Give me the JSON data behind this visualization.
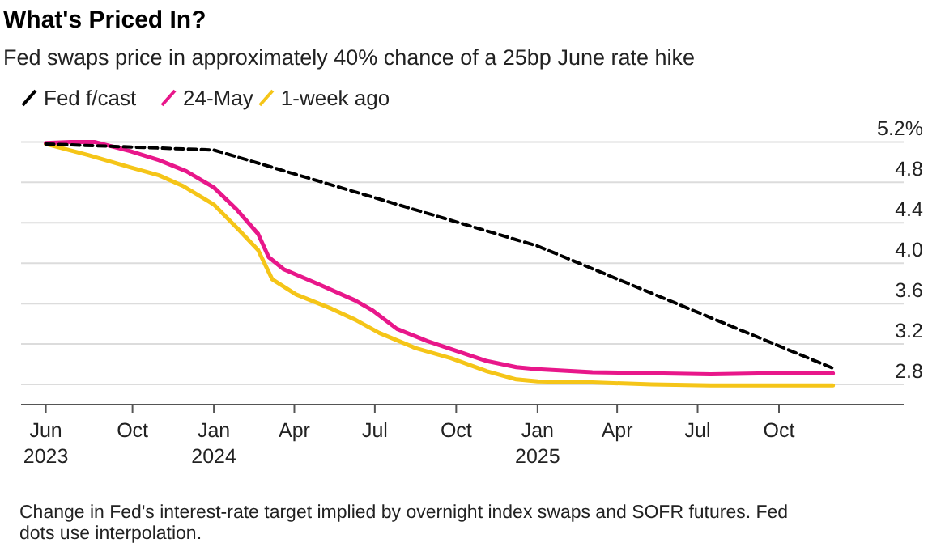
{
  "chart_data": {
    "type": "line",
    "title": "What's Priced In?",
    "subtitle": "Fed swaps price in approximately 40% chance of a 25bp June rate hike",
    "legend": "top left",
    "grid": "y",
    "annotations": [
      "Change in Fed's interest-rate target implied by overnight index swaps and SOFR futures. Fed dots use interpolation."
    ],
    "xlim": [
      "2023-05-28",
      "2026-02-19"
    ],
    "xticks": [
      {
        "value": "2023-06-25",
        "label": "Jun\n2023"
      },
      {
        "value": "2023-10-01",
        "label": "Oct"
      },
      {
        "value": "2024-01-01",
        "label": "Jan\n2024"
      },
      {
        "value": "2024-04-01",
        "label": "Apr"
      },
      {
        "value": "2024-07-01",
        "label": "Jul"
      },
      {
        "value": "2024-10-01",
        "label": "Oct"
      },
      {
        "value": "2025-01-01",
        "label": "Jan\n2025"
      },
      {
        "value": "2025-04-01",
        "label": "Apr"
      },
      {
        "value": "2025-07-01",
        "label": "Jul"
      },
      {
        "value": "2025-10-01",
        "label": "Oct"
      }
    ],
    "ylim": [
      2.6,
      5.2
    ],
    "yticks": [
      2.8,
      3.2,
      3.6,
      {
        "value": 4,
        "label": "4.0"
      },
      4.4,
      4.8,
      {
        "value": 5.2,
        "label": "5.2%"
      }
    ],
    "series": [
      {
        "name": "Fed f/cast",
        "color": "#000000",
        "line_style": "dashed",
        "x": [
          "2023-06-25",
          "2024-01-01",
          "2025-01-01",
          "2025-12-01"
        ],
        "values": [
          5.18,
          5.12,
          4.17,
          2.96
        ]
      },
      {
        "name": "24-May",
        "color": "#e8178a",
        "line_style": "solid",
        "x": [
          "2023-06-25",
          "2023-07-23",
          "2023-08-19",
          "2023-09-28",
          "2023-10-31",
          "2023-12-01",
          "2024-01-01",
          "2024-01-27",
          "2024-02-20",
          "2024-03-03",
          "2024-03-20",
          "2024-04-29",
          "2024-06-09",
          "2024-06-29",
          "2024-07-26",
          "2024-08-29",
          "2024-10-02",
          "2024-11-05",
          "2024-12-08",
          "2025-01-01",
          "2025-03-04",
          "2025-05-10",
          "2025-07-16",
          "2025-09-21",
          "2025-12-01"
        ],
        "values": [
          5.19,
          5.2,
          5.2,
          5.11,
          5.02,
          4.91,
          4.75,
          4.53,
          4.29,
          4.06,
          3.94,
          3.79,
          3.63,
          3.53,
          3.35,
          3.23,
          3.13,
          3.03,
          2.97,
          2.95,
          2.92,
          2.91,
          2.9,
          2.91,
          2.91
        ]
      },
      {
        "name": "1-week ago",
        "color": "#f5c518",
        "line_style": "solid",
        "x": [
          "2023-06-25",
          "2023-08-12",
          "2023-09-28",
          "2023-10-31",
          "2023-11-28",
          "2024-01-01",
          "2024-01-27",
          "2024-02-20",
          "2024-03-07",
          "2024-04-03",
          "2024-05-13",
          "2024-06-09",
          "2024-07-06",
          "2024-08-16",
          "2024-09-25",
          "2024-11-05",
          "2024-12-08",
          "2025-01-01",
          "2025-03-04",
          "2025-05-10",
          "2025-07-16",
          "2025-09-21",
          "2025-12-01"
        ],
        "values": [
          5.18,
          5.07,
          4.95,
          4.87,
          4.76,
          4.58,
          4.35,
          4.13,
          3.84,
          3.69,
          3.55,
          3.44,
          3.31,
          3.16,
          3.06,
          2.93,
          2.85,
          2.83,
          2.82,
          2.8,
          2.79,
          2.79,
          2.79
        ]
      }
    ]
  }
}
